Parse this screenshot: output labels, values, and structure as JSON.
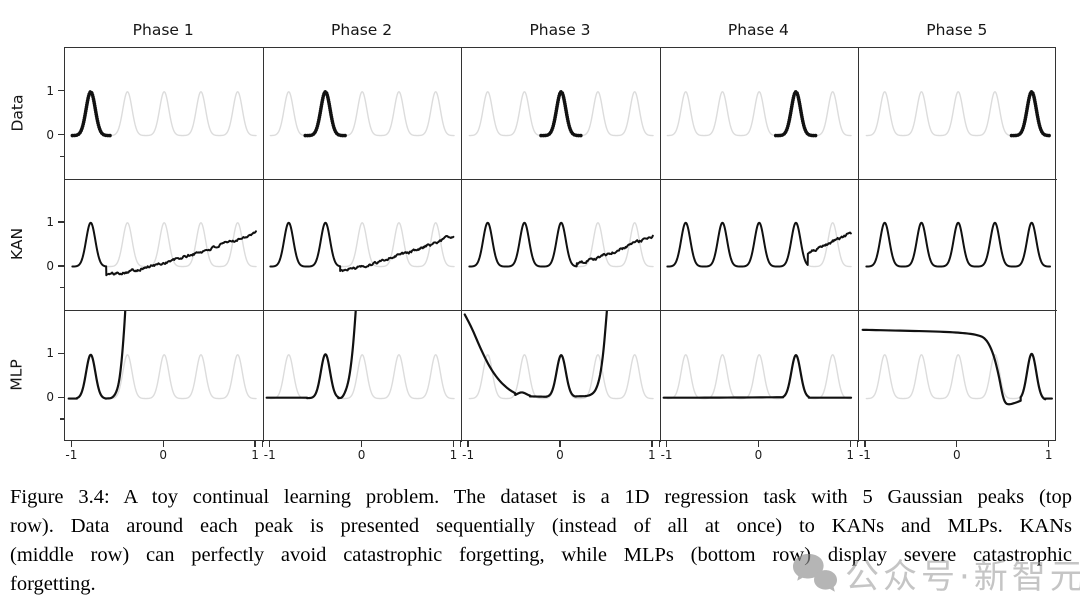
{
  "caption": {
    "lines": [
      "Figure 3.4: A toy continual learning problem. The dataset is a 1D regression task with 5 Gaussian peaks (top",
      "row).  Data around each peak is presented sequentially (instead of all at once) to KANs and MLPs.  KANs",
      "(middle row) can perfectly avoid catastrophic forgetting, while MLPs (bottom row) display severe catastrophic",
      "forgetting."
    ]
  },
  "watermark": {
    "text": "公众号·新智元",
    "icon": "chat-bubbles-icon",
    "color": "#969696"
  },
  "chart_data": {
    "type": "line",
    "title": "",
    "rows": [
      "Data",
      "KAN",
      "MLP"
    ],
    "cols": [
      "Phase 1",
      "Phase 2",
      "Phase 3",
      "Phase 4",
      "Phase 5"
    ],
    "x_ticks": [
      -1,
      0,
      1
    ],
    "y_ticks": [
      1,
      0
    ],
    "y_minor_ticks": [
      -0.5
    ],
    "xlim": [
      -1.08,
      1.08
    ],
    "ylim": [
      -1,
      2
    ],
    "colors": {
      "active": "#111111",
      "reference": "#dcdcdc",
      "frame": "#333333"
    },
    "gaussians": {
      "centers": [
        -0.8,
        -0.4,
        0.0,
        0.4,
        0.8
      ],
      "sigma": 0.05,
      "height": 1
    },
    "panels": {
      "data": [
        {
          "phase": 1,
          "bold_peak": -0.8,
          "span": [
            -1.0,
            -0.58
          ]
        },
        {
          "phase": 2,
          "bold_peak": -0.4,
          "span": [
            -0.62,
            -0.18
          ]
        },
        {
          "phase": 3,
          "bold_peak": 0.0,
          "span": [
            -0.22,
            0.22
          ]
        },
        {
          "phase": 4,
          "bold_peak": 0.4,
          "span": [
            0.18,
            0.62
          ]
        },
        {
          "phase": 5,
          "bold_peak": 0.8,
          "span": [
            0.58,
            1.0
          ]
        }
      ],
      "kan": [
        {
          "phase": 1,
          "learned_peaks": [
            -0.8
          ],
          "tail": {
            "x0": -0.63,
            "y0": -0.18,
            "x1": 1.0,
            "y1": 0.78,
            "pow": 1.35
          }
        },
        {
          "phase": 2,
          "learned_peaks": [
            -0.8,
            -0.4
          ],
          "tail": {
            "x0": -0.24,
            "y0": -0.08,
            "x1": 1.0,
            "y1": 0.72,
            "pow": 1.35
          }
        },
        {
          "phase": 3,
          "learned_peaks": [
            -0.8,
            -0.4,
            0.0
          ],
          "tail": {
            "x0": 0.17,
            "y0": 0.05,
            "x1": 1.0,
            "y1": 0.7,
            "pow": 1.1
          }
        },
        {
          "phase": 4,
          "learned_peaks": [
            -0.8,
            -0.4,
            0.0,
            0.4
          ],
          "tail": {
            "x0": 0.53,
            "y0": 0.3,
            "x1": 1.0,
            "y1": 0.77,
            "pow": 1.0
          }
        },
        {
          "phase": 5,
          "learned_peaks": [
            -0.8,
            -0.4,
            0.0,
            0.4,
            0.8
          ],
          "tail": null
        }
      ],
      "mlp": [
        {
          "phase": 1,
          "segments": [
            {
              "type": "line",
              "pts": [
                [
                  -1.04,
                  0.0
                ],
                [
                  -0.95,
                  0.0
                ]
              ]
            },
            {
              "type": "gauss",
              "c": -0.8,
              "h": 1.0,
              "base": 0.0,
              "from": -0.95,
              "to": -0.64
            },
            {
              "type": "line",
              "pts": [
                [
                  -0.64,
                  0.0
                ],
                [
                  -0.555,
                  0.01
                ],
                [
                  -0.5,
                  0.25
                ],
                [
                  -0.465,
                  0.8
                ],
                [
                  -0.435,
                  1.6
                ],
                [
                  -0.415,
                  2.35
                ]
              ]
            }
          ]
        },
        {
          "phase": 2,
          "segments": [
            {
              "type": "line",
              "pts": [
                [
                  -1.04,
                  0.02
                ],
                [
                  -0.6,
                  0.02
                ]
              ]
            },
            {
              "type": "gauss",
              "c": -0.4,
              "h": 1.0,
              "base": 0.01,
              "from": -0.6,
              "to": -0.26
            },
            {
              "type": "line",
              "pts": [
                [
                  -0.26,
                  0.01
                ],
                [
                  -0.21,
                  0.02
                ],
                [
                  -0.15,
                  0.35
                ],
                [
                  -0.11,
                  0.95
                ],
                [
                  -0.08,
                  1.7
                ],
                [
                  -0.06,
                  2.35
                ]
              ]
            }
          ]
        },
        {
          "phase": 3,
          "segments": [
            {
              "type": "line",
              "pts": [
                [
                  -1.05,
                  1.92
                ],
                [
                  -0.97,
                  1.6
                ],
                [
                  -0.88,
                  1.15
                ],
                [
                  -0.78,
                  0.72
                ],
                [
                  -0.68,
                  0.42
                ],
                [
                  -0.58,
                  0.22
                ],
                [
                  -0.5,
                  0.12
                ]
              ]
            },
            {
              "type": "gauss",
              "c": -0.43,
              "h": 0.09,
              "base": 0.05,
              "from": -0.5,
              "to": -0.34
            },
            {
              "type": "line",
              "pts": [
                [
                  -0.34,
                  0.05
                ],
                [
                  -0.16,
                  0.04
                ]
              ]
            },
            {
              "type": "gauss",
              "c": 0.0,
              "h": 0.95,
              "base": 0.04,
              "from": -0.16,
              "to": 0.16
            },
            {
              "type": "line",
              "pts": [
                [
                  0.16,
                  0.05
                ],
                [
                  0.34,
                  0.06
                ],
                [
                  0.41,
                  0.35
                ],
                [
                  0.455,
                  0.95
                ],
                [
                  0.49,
                  1.8
                ],
                [
                  0.51,
                  2.35
                ]
              ]
            }
          ]
        },
        {
          "phase": 4,
          "segments": [
            {
              "type": "line",
              "pts": [
                [
                  -1.04,
                  0.02
                ],
                [
                  -0.5,
                  0.02
                ],
                [
                  0.26,
                  0.03
                ]
              ]
            },
            {
              "type": "gauss",
              "c": 0.4,
              "h": 0.97,
              "base": 0.02,
              "from": 0.26,
              "to": 0.54
            },
            {
              "type": "line",
              "pts": [
                [
                  0.54,
                  0.02
                ],
                [
                  1.0,
                  0.02
                ]
              ]
            }
          ]
        },
        {
          "phase": 5,
          "segments": [
            {
              "type": "line",
              "pts": [
                [
                  -1.04,
                  1.57
                ],
                [
                  -0.6,
                  1.55
                ],
                [
                  -0.2,
                  1.53
                ],
                [
                  0.05,
                  1.5
                ],
                [
                  0.2,
                  1.46
                ],
                [
                  0.3,
                  1.38
                ],
                [
                  0.38,
                  1.05
                ],
                [
                  0.44,
                  0.55
                ],
                [
                  0.48,
                  0.1
                ],
                [
                  0.51,
                  -0.1
                ],
                [
                  0.55,
                  -0.14
                ],
                [
                  0.62,
                  -0.1
                ],
                [
                  0.68,
                  -0.05
                ]
              ]
            },
            {
              "type": "gauss",
              "c": 0.8,
              "h": 1.05,
              "base": -0.03,
              "from": 0.68,
              "to": 0.95
            },
            {
              "type": "line",
              "pts": [
                [
                  0.95,
                  0.0
                ],
                [
                  1.02,
                  0.0
                ]
              ]
            }
          ]
        }
      ]
    }
  }
}
